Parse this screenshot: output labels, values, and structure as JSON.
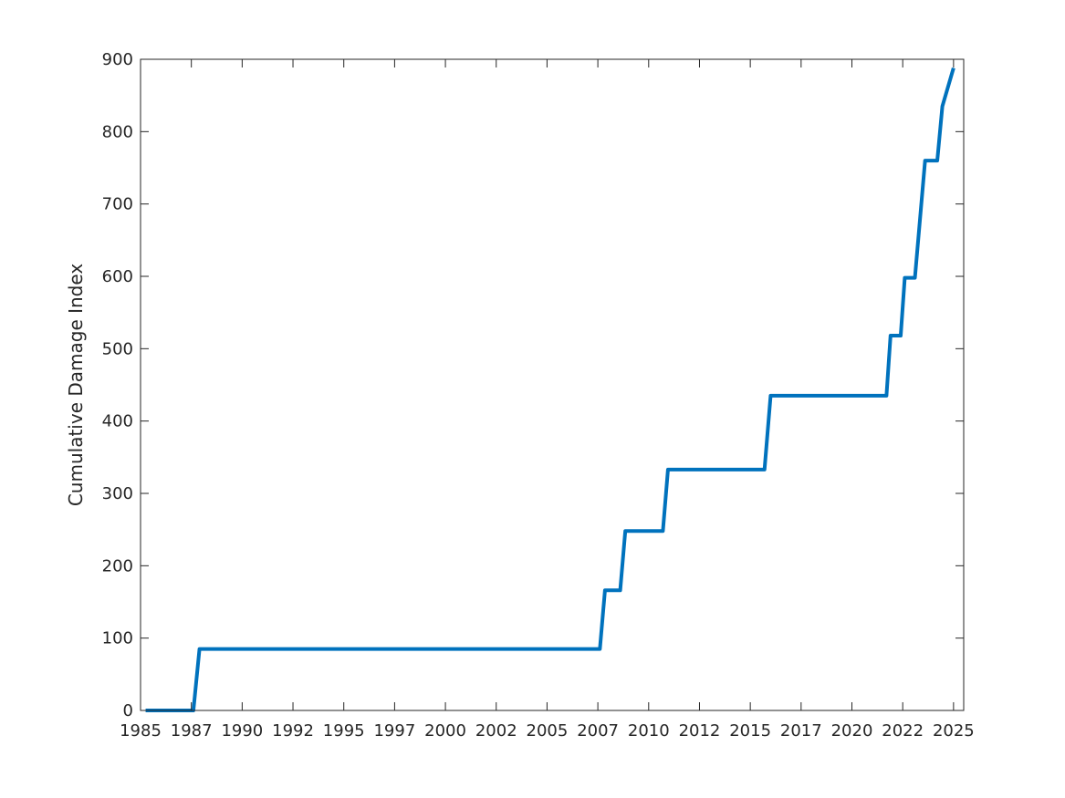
{
  "chart_data": {
    "type": "line",
    "title": "",
    "xlabel": "",
    "ylabel": "Cumulative Damage Index",
    "xlim": [
      1985.0,
      2025.5
    ],
    "ylim": [
      0,
      900
    ],
    "grid": false,
    "legend": "none",
    "line_color": "#0072BD",
    "axis_color": "#262626",
    "x_ticks": [
      {
        "value": 1985.0,
        "label": "1985"
      },
      {
        "value": 1987.5,
        "label": "1987"
      },
      {
        "value": 1990.0,
        "label": "1990"
      },
      {
        "value": 1992.5,
        "label": "1992"
      },
      {
        "value": 1995.0,
        "label": "1995"
      },
      {
        "value": 1997.5,
        "label": "1997"
      },
      {
        "value": 2000.0,
        "label": "2000"
      },
      {
        "value": 2002.5,
        "label": "2002"
      },
      {
        "value": 2005.0,
        "label": "2005"
      },
      {
        "value": 2007.5,
        "label": "2007"
      },
      {
        "value": 2010.0,
        "label": "2010"
      },
      {
        "value": 2012.5,
        "label": "2012"
      },
      {
        "value": 2015.0,
        "label": "2015"
      },
      {
        "value": 2017.5,
        "label": "2017"
      },
      {
        "value": 2020.0,
        "label": "2020"
      },
      {
        "value": 2022.5,
        "label": "2022"
      },
      {
        "value": 2025.0,
        "label": "2025"
      }
    ],
    "y_ticks": [
      {
        "value": 0,
        "label": "0"
      },
      {
        "value": 100,
        "label": "100"
      },
      {
        "value": 200,
        "label": "200"
      },
      {
        "value": 300,
        "label": "300"
      },
      {
        "value": 400,
        "label": "400"
      },
      {
        "value": 500,
        "label": "500"
      },
      {
        "value": 600,
        "label": "600"
      },
      {
        "value": 700,
        "label": "700"
      },
      {
        "value": 800,
        "label": "800"
      },
      {
        "value": 900,
        "label": "900"
      }
    ],
    "series": [
      {
        "x": [
          1985.25,
          1987.6,
          1987.9,
          2007.6,
          2007.85,
          2008.6,
          2008.85,
          2010.7,
          2010.95,
          2015.7,
          2016.0,
          2021.7,
          2021.9,
          2022.4,
          2022.6,
          2023.1,
          2023.6,
          2024.2,
          2024.45,
          2025.0
        ],
        "y": [
          0,
          0,
          85,
          85,
          166,
          166,
          248,
          248,
          333,
          333,
          435,
          435,
          518,
          518,
          598,
          598,
          760,
          760,
          835,
          888
        ]
      }
    ]
  }
}
